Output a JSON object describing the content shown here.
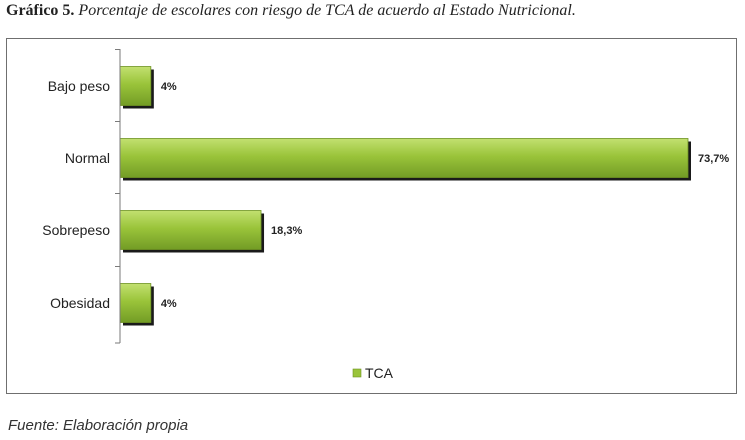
{
  "caption": {
    "label": "Gráfico 5.",
    "text": "Porcentaje de escolares con riesgo de TCA de acuerdo al  Estado Nutricional."
  },
  "source": "Fuente: Elaboración propia",
  "colors": {
    "bar": "#9ac43a",
    "bar_dark": "#6e9322",
    "shadow": "#1a1a1a",
    "axis": "#7a7a7a"
  },
  "chart_data": {
    "type": "bar",
    "orientation": "horizontal",
    "categories": [
      "Bajo peso",
      "Normal",
      "Sobrepeso",
      "Obesidad"
    ],
    "series": [
      {
        "name": "TCA",
        "values": [
          4,
          73.7,
          18.3,
          4
        ]
      }
    ],
    "data_labels": [
      "4%",
      "73,7%",
      "18,3%",
      "4%"
    ],
    "xlim": [
      0,
      73.7
    ],
    "grid": false,
    "legend": "bottom"
  }
}
